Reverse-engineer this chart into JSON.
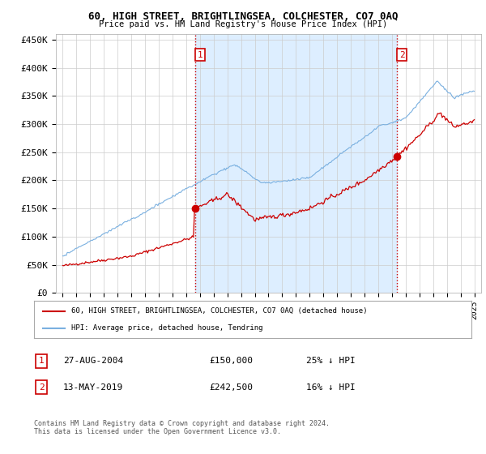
{
  "title1": "60, HIGH STREET, BRIGHTLINGSEA, COLCHESTER, CO7 0AQ",
  "title2": "Price paid vs. HM Land Registry's House Price Index (HPI)",
  "ylabel_ticks": [
    "£0",
    "£50K",
    "£100K",
    "£150K",
    "£200K",
    "£250K",
    "£300K",
    "£350K",
    "£400K",
    "£450K"
  ],
  "ytick_values": [
    0,
    50000,
    100000,
    150000,
    200000,
    250000,
    300000,
    350000,
    400000,
    450000
  ],
  "ylim": [
    0,
    460000
  ],
  "xlim_start": 1994.5,
  "xlim_end": 2025.5,
  "sale1_x": 2004.65,
  "sale1_y": 150000,
  "sale1_label": "1",
  "sale2_x": 2019.37,
  "sale2_y": 242500,
  "sale2_label": "2",
  "vline_color": "#cc0000",
  "vline_style": ":",
  "hpi_line_color": "#7ab0e0",
  "price_line_color": "#cc0000",
  "background_color": "#ffffff",
  "plot_bg_color": "#ffffff",
  "shading_color": "#ddeeff",
  "grid_color": "#cccccc",
  "legend1_text": "60, HIGH STREET, BRIGHTLINGSEA, COLCHESTER, CO7 0AQ (detached house)",
  "legend2_text": "HPI: Average price, detached house, Tendring",
  "annotation1_date": "27-AUG-2004",
  "annotation1_price": "£150,000",
  "annotation1_hpi": "25% ↓ HPI",
  "annotation2_date": "13-MAY-2019",
  "annotation2_price": "£242,500",
  "annotation2_hpi": "16% ↓ HPI",
  "footnote": "Contains HM Land Registry data © Crown copyright and database right 2024.\nThis data is licensed under the Open Government Licence v3.0.",
  "xtick_years": [
    1995,
    1996,
    1997,
    1998,
    1999,
    2000,
    2001,
    2002,
    2003,
    2004,
    2005,
    2006,
    2007,
    2008,
    2009,
    2010,
    2011,
    2012,
    2013,
    2014,
    2015,
    2016,
    2017,
    2018,
    2019,
    2020,
    2021,
    2022,
    2023,
    2024,
    2025
  ],
  "hpi_seed": 17,
  "price_seed": 42
}
